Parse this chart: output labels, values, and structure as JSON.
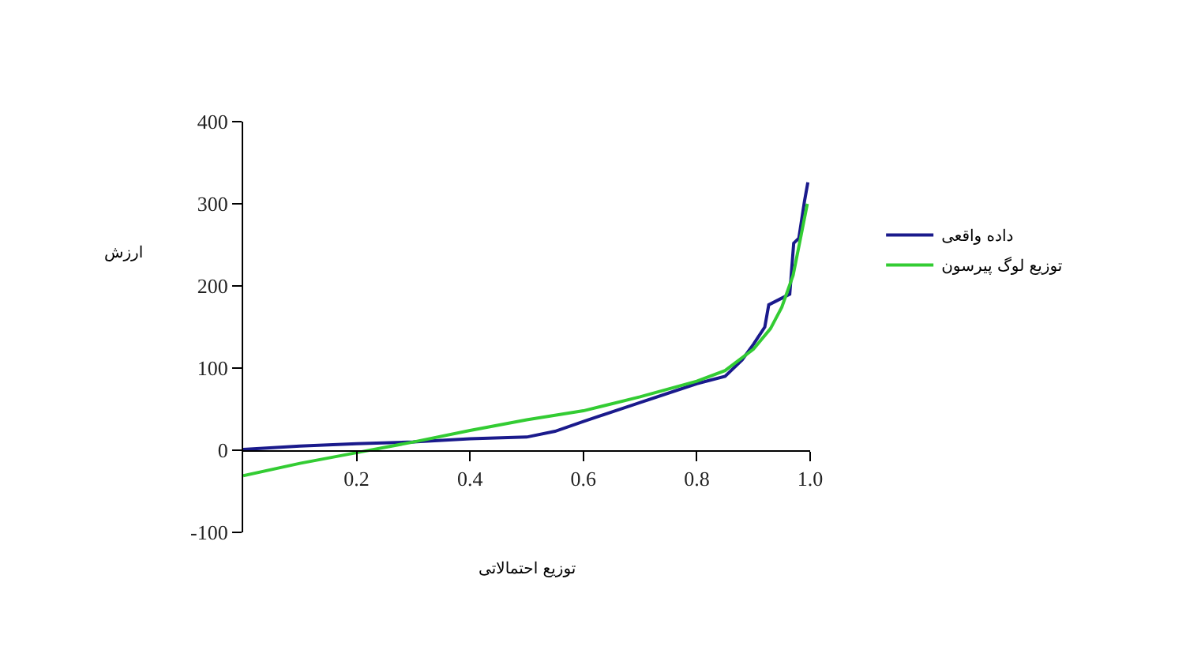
{
  "chart_data": {
    "type": "line",
    "xlabel": "توزیع احتمالاتی",
    "ylabel": "ارزش",
    "xlim": [
      0,
      1
    ],
    "xticks": [
      0.2,
      0.4,
      0.6,
      0.8,
      {
        "value": 1,
        "label": "1.0"
      }
    ],
    "ylim": [
      -100,
      400
    ],
    "yticks": [
      -100,
      0,
      100,
      200,
      300,
      400
    ],
    "grid": false,
    "legend": "right",
    "marker": "none",
    "line_style": "solid",
    "series": [
      {
        "name": "داده واقعی",
        "color": "#1a1a8c",
        "x": [
          0,
          0.1,
          0.2,
          0.3,
          0.4,
          0.5,
          0.55,
          0.6,
          0.7,
          0.8,
          0.85,
          0.88,
          0.9,
          0.92,
          0.927,
          0.964,
          0.971,
          0.98,
          0.99,
          0.996
        ],
        "values": [
          1,
          5,
          8,
          10,
          14,
          16,
          23,
          35,
          58,
          81,
          90,
          110,
          129,
          150,
          177,
          190,
          252,
          258,
          303,
          326
        ]
      },
      {
        "name": "توزیع لوگ پیرسون",
        "color": "#33cc33",
        "x": [
          0,
          0.1,
          0.2,
          0.3,
          0.4,
          0.5,
          0.6,
          0.7,
          0.8,
          0.85,
          0.9,
          0.93,
          0.95,
          0.97,
          0.985,
          0.995
        ],
        "values": [
          -31,
          -16,
          -3,
          10,
          24,
          37,
          48,
          65,
          84,
          97,
          123,
          148,
          174,
          213,
          265,
          300
        ]
      }
    ]
  }
}
